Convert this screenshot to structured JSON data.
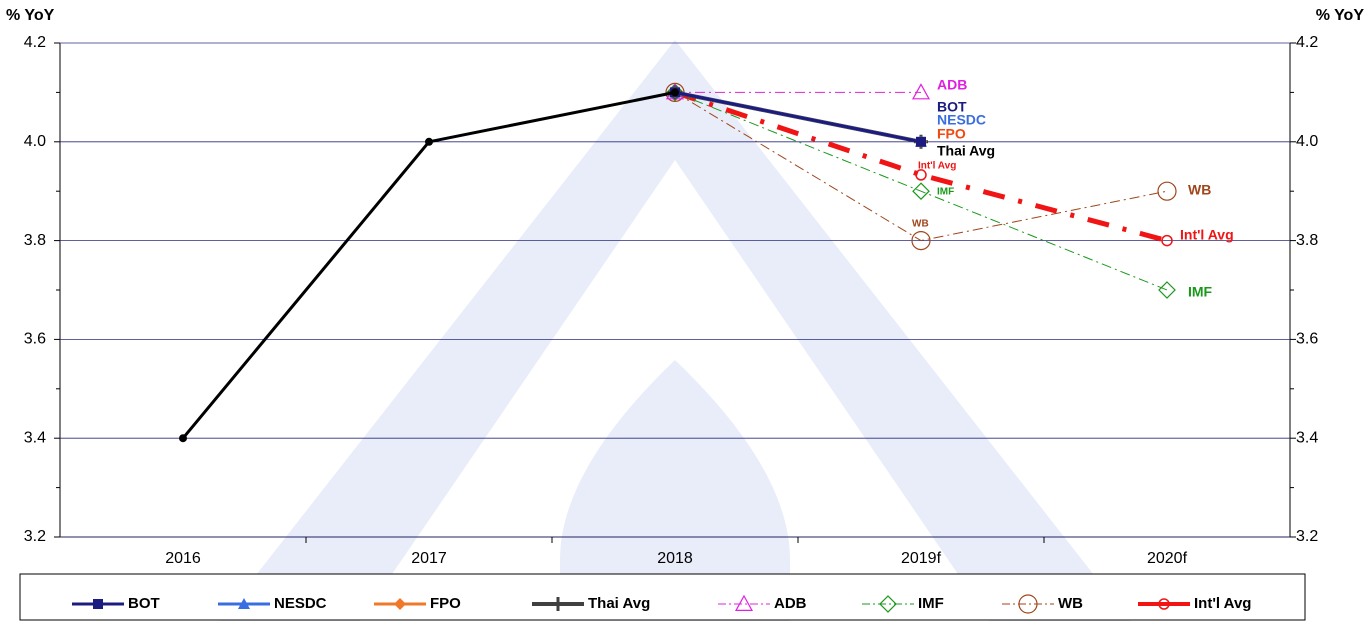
{
  "chart_data": {
    "type": "line",
    "ylabel": "% YoY",
    "y2label": "% YoY",
    "categories": [
      "2016",
      "2017",
      "2018",
      "2019f",
      "2020f"
    ],
    "ylim": [
      3.2,
      4.2
    ],
    "yticks": [
      3.2,
      {
        "value": 3.4,
        "label": "3.4"
      },
      {
        "value": 3.6,
        "label": "3.6"
      },
      {
        "value": 3.8,
        "label": "3.8"
      },
      {
        "value": 4,
        "label": "4.0"
      },
      4.2
    ],
    "y2lim": [
      3.2,
      4.2
    ],
    "y2ticks": [
      3.2,
      {
        "value": 3.4,
        "label": "3.4"
      },
      {
        "value": 3.6,
        "label": "3.6"
      },
      {
        "value": 3.8,
        "label": "3.8"
      },
      {
        "value": 4,
        "label": "4.0"
      },
      4.2
    ],
    "grid": true,
    "legend": "bottom",
    "series": [
      {
        "color": "#000000",
        "marker": "dot",
        "width": 3,
        "values": [
          3.4,
          4.0,
          4.1,
          null,
          null
        ]
      },
      {
        "name": "BOT",
        "color": "#1c1c80",
        "marker": "square",
        "width": 3,
        "values": [
          null,
          null,
          4.1,
          4.0,
          null
        ]
      },
      {
        "name": "NESDC",
        "color": "#3a6ee0",
        "marker": "triangle",
        "width": 3,
        "values": [
          null,
          null,
          4.1,
          4.0,
          null
        ]
      },
      {
        "name": "FPO",
        "color": "#f07828",
        "marker": "diamond",
        "width": 3,
        "values": [
          null,
          null,
          4.1,
          4.0,
          null
        ]
      },
      {
        "name": "Thai Avg",
        "color": "#404040",
        "marker": "plus",
        "width": 4,
        "values": [
          null,
          null,
          4.1,
          4.0,
          null
        ]
      },
      {
        "name": "ADB",
        "color": "#e020e0",
        "marker": "open-triangle",
        "dash": "dash-dot",
        "width": 1,
        "values": [
          null,
          null,
          4.1,
          4.1,
          null
        ]
      },
      {
        "name": "IMF",
        "color": "#1a981a",
        "marker": "open-diamond",
        "dash": "dash-dot",
        "width": 1,
        "values": [
          null,
          null,
          4.1,
          3.9,
          3.7
        ]
      },
      {
        "name": "WB",
        "color": "#a0461c",
        "marker": "open-circle",
        "dash": "dash-dot",
        "width": 1,
        "values": [
          null,
          null,
          4.1,
          3.8,
          3.9
        ]
      },
      {
        "name": "Int'l Avg",
        "color": "#f01414",
        "marker": "ring",
        "dash": "long-dash-dot",
        "width": 5,
        "values": [
          null,
          null,
          4.1,
          3.933,
          3.8
        ]
      }
    ],
    "annotations": [
      {
        "text": "ADB",
        "color": "#e020e0"
      },
      {
        "text": "BOT",
        "color": "#1c1c80"
      },
      {
        "text": "NESDC",
        "color": "#3a6ee0"
      },
      {
        "text": "FPO",
        "color": "#f04a10"
      },
      {
        "text": "Thai Avg",
        "color": "#000000"
      },
      {
        "text": "Int'l Avg",
        "color": "#f01414"
      },
      {
        "text": "IMF",
        "color": "#1a981a"
      },
      {
        "text": "WB",
        "color": "#a0461c"
      },
      {
        "text": "WB",
        "color": "#a0461c"
      },
      {
        "text": "Int'l Avg",
        "color": "#f01414"
      },
      {
        "text": "IMF",
        "color": "#1a981a"
      }
    ]
  }
}
